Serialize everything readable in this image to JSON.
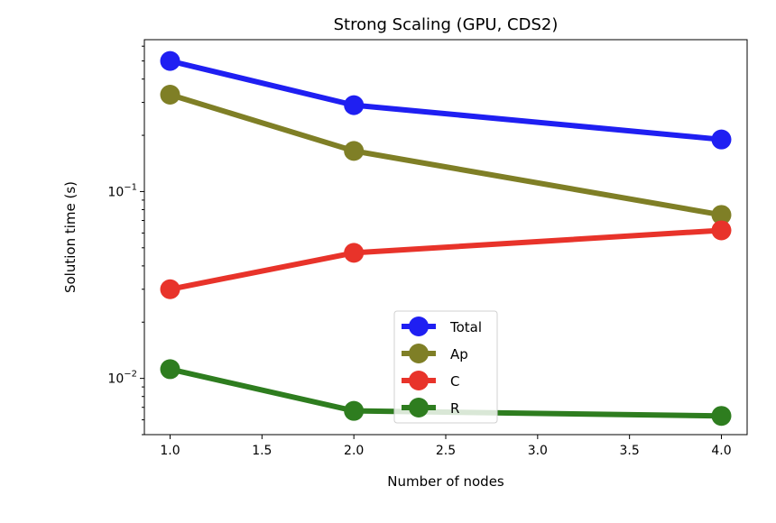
{
  "chart_data": {
    "type": "line",
    "title": "Strong Scaling (GPU, CDS2)",
    "xlabel": "Number of nodes",
    "ylabel": "Solution time (s)",
    "x": [
      1.0,
      2.0,
      4.0
    ],
    "xlim": [
      0.86,
      4.14
    ],
    "xticks": [
      "1.0",
      "1.5",
      "2.0",
      "2.5",
      "3.0",
      "3.5",
      "4.0"
    ],
    "yscale": "log",
    "ylim": [
      0.005,
      0.65
    ],
    "yticks_major": [
      {
        "value": 0.01,
        "base": "10",
        "exp": "−2"
      },
      {
        "value": 0.1,
        "base": "10",
        "exp": "−1"
      }
    ],
    "grid": false,
    "legend_position": "lower-center",
    "series": [
      {
        "name": "Total",
        "color": "#1f1ff2",
        "values": [
          0.5,
          0.29,
          0.19
        ]
      },
      {
        "name": "Ap",
        "color": "#7f7f26",
        "values": [
          0.33,
          0.165,
          0.075
        ]
      },
      {
        "name": "C",
        "color": "#e8332a",
        "values": [
          0.03,
          0.047,
          0.062
        ]
      },
      {
        "name": "R",
        "color": "#2e7d1f",
        "values": [
          0.0112,
          0.0067,
          0.0063
        ]
      }
    ]
  }
}
